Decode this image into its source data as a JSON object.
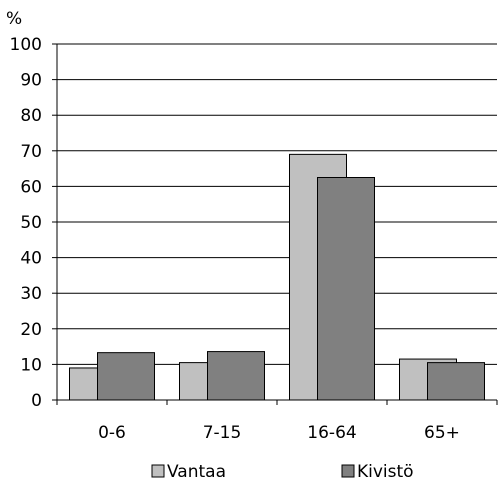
{
  "chart_data": {
    "type": "bar",
    "title": "",
    "xlabel": "",
    "ylabel": "%",
    "ylim": [
      0,
      100
    ],
    "yticks": [
      0,
      10,
      20,
      30,
      40,
      50,
      60,
      70,
      80,
      90,
      100
    ],
    "grid": true,
    "legend_position": "bottom",
    "categories": [
      "0-6",
      "7-15",
      "16-64",
      "65+"
    ],
    "series": [
      {
        "name": "Vantaa",
        "color": "#c0c0c0",
        "values": [
          9,
          10.5,
          69,
          11.5
        ]
      },
      {
        "name": "Kivistö",
        "color": "#808080",
        "values": [
          13.3,
          13.6,
          62.5,
          10.5
        ]
      }
    ]
  }
}
